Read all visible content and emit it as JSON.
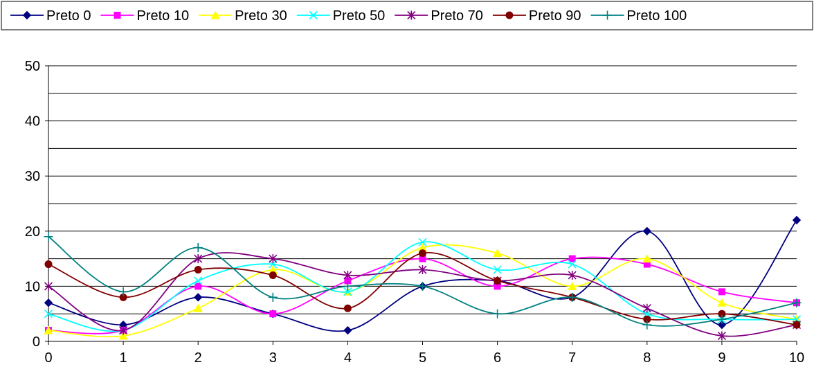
{
  "chart_data": {
    "type": "line",
    "smooth": true,
    "title": "",
    "xlabel": "",
    "ylabel": "",
    "x": [
      0,
      1,
      2,
      3,
      4,
      5,
      6,
      7,
      8,
      9,
      10
    ],
    "xlim": [
      0,
      10
    ],
    "ylim": [
      0,
      50
    ],
    "y_ticks": [
      0,
      10,
      20,
      30,
      40,
      50
    ],
    "grid": "horizontal, every 5 units",
    "legend_position": "top",
    "series": [
      {
        "name": "Preto 0",
        "color": "#000080",
        "marker": "diamond",
        "values": [
          7,
          3,
          8,
          5,
          2,
          10,
          11,
          8,
          20,
          3,
          22
        ]
      },
      {
        "name": "Preto 10",
        "color": "#FF00FF",
        "marker": "square",
        "values": [
          2,
          2,
          10,
          5,
          11,
          15,
          10,
          15,
          14,
          9,
          7
        ]
      },
      {
        "name": "Preto 30",
        "color": "#FFFF00",
        "marker": "triangle",
        "values": [
          2,
          1,
          6,
          13,
          9,
          17,
          16,
          10,
          15,
          7,
          4
        ]
      },
      {
        "name": "Preto 50",
        "color": "#00FFFF",
        "marker": "x",
        "values": [
          5,
          2,
          11,
          14,
          9,
          18,
          13,
          14,
          5,
          4,
          4
        ]
      },
      {
        "name": "Preto 70",
        "color": "#800080",
        "marker": "star",
        "values": [
          10,
          2,
          15,
          15,
          12,
          13,
          11,
          12,
          6,
          1,
          3
        ]
      },
      {
        "name": "Preto 90",
        "color": "#800000",
        "marker": "circle",
        "values": [
          14,
          8,
          13,
          12,
          6,
          16,
          11,
          8,
          4,
          5,
          3
        ]
      },
      {
        "name": "Preto 100",
        "color": "#008080",
        "marker": "plus",
        "values": [
          19,
          9,
          17,
          8,
          10,
          10,
          5,
          8,
          3,
          4,
          7
        ]
      }
    ]
  }
}
